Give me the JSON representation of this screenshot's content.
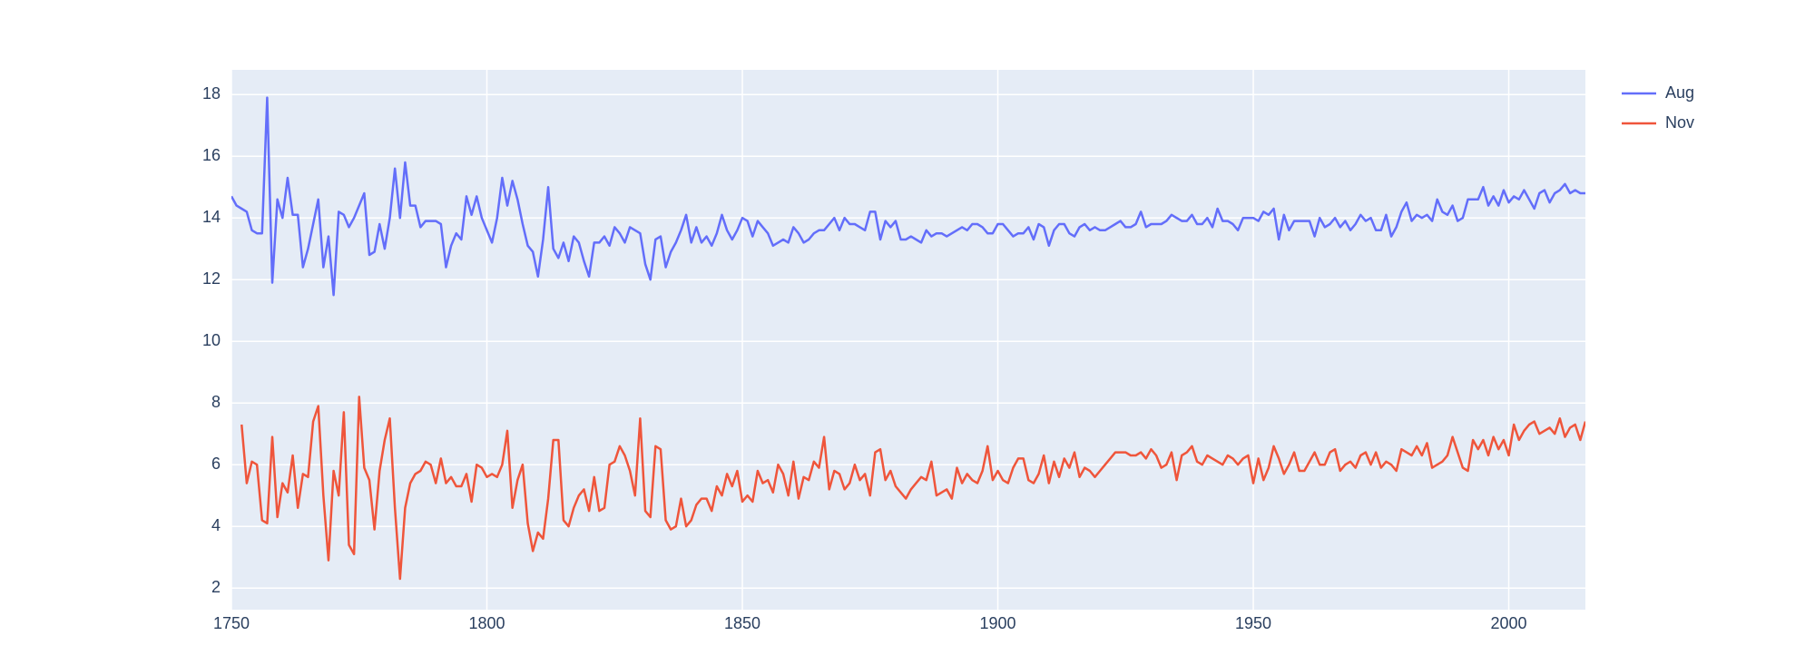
{
  "chart_data": {
    "type": "line",
    "x": [
      1750,
      1751,
      1752,
      1753,
      1754,
      1755,
      1756,
      1757,
      1758,
      1759,
      1760,
      1761,
      1762,
      1763,
      1764,
      1765,
      1766,
      1767,
      1768,
      1769,
      1770,
      1771,
      1772,
      1773,
      1774,
      1775,
      1776,
      1777,
      1778,
      1779,
      1780,
      1781,
      1782,
      1783,
      1784,
      1785,
      1786,
      1787,
      1788,
      1789,
      1790,
      1791,
      1792,
      1793,
      1794,
      1795,
      1796,
      1797,
      1798,
      1799,
      1800,
      1801,
      1802,
      1803,
      1804,
      1805,
      1806,
      1807,
      1808,
      1809,
      1810,
      1811,
      1812,
      1813,
      1814,
      1815,
      1816,
      1817,
      1818,
      1819,
      1820,
      1821,
      1822,
      1823,
      1824,
      1825,
      1826,
      1827,
      1828,
      1829,
      1830,
      1831,
      1832,
      1833,
      1834,
      1835,
      1836,
      1837,
      1838,
      1839,
      1840,
      1841,
      1842,
      1843,
      1844,
      1845,
      1846,
      1847,
      1848,
      1849,
      1850,
      1851,
      1852,
      1853,
      1854,
      1855,
      1856,
      1857,
      1858,
      1859,
      1860,
      1861,
      1862,
      1863,
      1864,
      1865,
      1866,
      1867,
      1868,
      1869,
      1870,
      1871,
      1872,
      1873,
      1874,
      1875,
      1876,
      1877,
      1878,
      1879,
      1880,
      1881,
      1882,
      1883,
      1884,
      1885,
      1886,
      1887,
      1888,
      1889,
      1890,
      1891,
      1892,
      1893,
      1894,
      1895,
      1896,
      1897,
      1898,
      1899,
      1900,
      1901,
      1902,
      1903,
      1904,
      1905,
      1906,
      1907,
      1908,
      1909,
      1910,
      1911,
      1912,
      1913,
      1914,
      1915,
      1916,
      1917,
      1918,
      1919,
      1920,
      1921,
      1922,
      1923,
      1924,
      1925,
      1926,
      1927,
      1928,
      1929,
      1930,
      1931,
      1932,
      1933,
      1934,
      1935,
      1936,
      1937,
      1938,
      1939,
      1940,
      1941,
      1942,
      1943,
      1944,
      1945,
      1946,
      1947,
      1948,
      1949,
      1950,
      1951,
      1952,
      1953,
      1954,
      1955,
      1956,
      1957,
      1958,
      1959,
      1960,
      1961,
      1962,
      1963,
      1964,
      1965,
      1966,
      1967,
      1968,
      1969,
      1970,
      1971,
      1972,
      1973,
      1974,
      1975,
      1976,
      1977,
      1978,
      1979,
      1980,
      1981,
      1982,
      1983,
      1984,
      1985,
      1986,
      1987,
      1988,
      1989,
      1990,
      1991,
      1992,
      1993,
      1994,
      1995,
      1996,
      1997,
      1998,
      1999,
      2000,
      2001,
      2002,
      2003,
      2004,
      2005,
      2006,
      2007,
      2008,
      2009,
      2010,
      2011,
      2012,
      2013,
      2014,
      2015
    ],
    "series": [
      {
        "name": "Aug",
        "color": "#636efa",
        "values": [
          14.7,
          14.4,
          14.3,
          14.2,
          13.6,
          13.5,
          13.5,
          17.9,
          11.9,
          14.6,
          14.0,
          15.3,
          14.1,
          14.1,
          12.4,
          13.0,
          13.8,
          14.6,
          12.4,
          13.4,
          11.5,
          14.2,
          14.1,
          13.7,
          14.0,
          14.4,
          14.8,
          12.8,
          12.9,
          13.8,
          13.0,
          14.0,
          15.6,
          14.0,
          15.8,
          14.4,
          14.4,
          13.7,
          13.9,
          13.9,
          13.9,
          13.8,
          12.4,
          13.1,
          13.5,
          13.3,
          14.7,
          14.1,
          14.7,
          14.0,
          13.6,
          13.2,
          14.0,
          15.3,
          14.4,
          15.2,
          14.6,
          13.8,
          13.1,
          12.9,
          12.1,
          13.3,
          15.0,
          13.0,
          12.7,
          13.2,
          12.6,
          13.4,
          13.2,
          12.6,
          12.1,
          13.2,
          13.2,
          13.4,
          13.1,
          13.7,
          13.5,
          13.2,
          13.7,
          13.6,
          13.5,
          12.5,
          12.0,
          13.3,
          13.4,
          12.4,
          12.9,
          13.2,
          13.6,
          14.1,
          13.2,
          13.7,
          13.2,
          13.4,
          13.1,
          13.5,
          14.1,
          13.6,
          13.3,
          13.6,
          14.0,
          13.9,
          13.4,
          13.9,
          13.7,
          13.5,
          13.1,
          13.2,
          13.3,
          13.2,
          13.7,
          13.5,
          13.2,
          13.3,
          13.5,
          13.6,
          13.6,
          13.8,
          14.0,
          13.6,
          14.0,
          13.8,
          13.8,
          13.7,
          13.6,
          14.2,
          14.2,
          13.3,
          13.9,
          13.7,
          13.9,
          13.3,
          13.3,
          13.4,
          13.3,
          13.2,
          13.6,
          13.4,
          13.5,
          13.5,
          13.4,
          13.5,
          13.6,
          13.7,
          13.6,
          13.8,
          13.8,
          13.7,
          13.5,
          13.5,
          13.8,
          13.8,
          13.6,
          13.4,
          13.5,
          13.5,
          13.7,
          13.3,
          13.8,
          13.7,
          13.1,
          13.6,
          13.8,
          13.8,
          13.5,
          13.4,
          13.7,
          13.8,
          13.6,
          13.7,
          13.6,
          13.6,
          13.7,
          13.8,
          13.9,
          13.7,
          13.7,
          13.8,
          14.2,
          13.7,
          13.8,
          13.8,
          13.8,
          13.9,
          14.1,
          14.0,
          13.9,
          13.9,
          14.1,
          13.8,
          13.8,
          14.0,
          13.7,
          14.3,
          13.9,
          13.9,
          13.8,
          13.6,
          14.0,
          14.0,
          14.0,
          13.9,
          14.2,
          14.1,
          14.3,
          13.3,
          14.1,
          13.6,
          13.9,
          13.9,
          13.9,
          13.9,
          13.4,
          14.0,
          13.7,
          13.8,
          14.0,
          13.7,
          13.9,
          13.6,
          13.8,
          14.1,
          13.9,
          14.0,
          13.6,
          13.6,
          14.1,
          13.4,
          13.7,
          14.2,
          14.5,
          13.9,
          14.1,
          14.0,
          14.1,
          13.9,
          14.6,
          14.2,
          14.1,
          14.4,
          13.9,
          14.0,
          14.6,
          14.6,
          14.6,
          15.0,
          14.4,
          14.7,
          14.4,
          14.9,
          14.5,
          14.7,
          14.6,
          14.9,
          14.6,
          14.3,
          14.8,
          14.9,
          14.5,
          14.8,
          14.9,
          15.1,
          14.8,
          14.9,
          14.8,
          14.8
        ]
      },
      {
        "name": "Nov",
        "color": "#ef553b",
        "values": [
          null,
          null,
          7.3,
          5.4,
          6.1,
          6.0,
          4.2,
          4.1,
          6.9,
          4.3,
          5.4,
          5.1,
          6.3,
          4.6,
          5.7,
          5.6,
          7.4,
          7.9,
          5.0,
          2.9,
          5.8,
          5.0,
          7.7,
          3.4,
          3.1,
          8.2,
          5.9,
          5.5,
          3.9,
          5.8,
          6.8,
          7.5,
          4.6,
          2.3,
          4.6,
          5.4,
          5.7,
          5.8,
          6.1,
          6.0,
          5.4,
          6.2,
          5.4,
          5.6,
          5.3,
          5.3,
          5.7,
          4.8,
          6.0,
          5.9,
          5.6,
          5.7,
          5.6,
          6.0,
          7.1,
          4.6,
          5.5,
          6.0,
          4.1,
          3.2,
          3.8,
          3.6,
          4.9,
          6.8,
          6.8,
          4.2,
          4.0,
          4.6,
          5.0,
          5.2,
          4.5,
          5.6,
          4.5,
          4.6,
          6.0,
          6.1,
          6.6,
          6.3,
          5.8,
          5.0,
          7.5,
          4.5,
          4.3,
          6.6,
          6.5,
          4.2,
          3.9,
          4.0,
          4.9,
          4.0,
          4.2,
          4.7,
          4.9,
          4.9,
          4.5,
          5.3,
          5.0,
          5.7,
          5.3,
          5.8,
          4.8,
          5.0,
          4.8,
          5.8,
          5.4,
          5.5,
          5.1,
          6.0,
          5.7,
          5.0,
          6.1,
          4.9,
          5.6,
          5.5,
          6.1,
          5.9,
          6.9,
          5.2,
          5.8,
          5.7,
          5.2,
          5.4,
          6.0,
          5.5,
          5.7,
          5.0,
          6.4,
          6.5,
          5.5,
          5.8,
          5.3,
          5.1,
          4.9,
          5.2,
          5.4,
          5.6,
          5.5,
          6.1,
          5.0,
          5.1,
          5.2,
          4.9,
          5.9,
          5.4,
          5.7,
          5.5,
          5.4,
          5.8,
          6.6,
          5.5,
          5.8,
          5.5,
          5.4,
          5.9,
          6.2,
          6.2,
          5.5,
          5.4,
          5.7,
          6.3,
          5.4,
          6.1,
          5.6,
          6.2,
          5.9,
          6.4,
          5.6,
          5.9,
          5.8,
          5.6,
          5.8,
          6.0,
          6.2,
          6.4,
          6.4,
          6.4,
          6.3,
          6.3,
          6.4,
          6.2,
          6.5,
          6.3,
          5.9,
          6.0,
          6.4,
          5.5,
          6.3,
          6.4,
          6.6,
          6.1,
          6.0,
          6.3,
          6.2,
          6.1,
          6.0,
          6.3,
          6.2,
          6.0,
          6.2,
          6.3,
          5.4,
          6.2,
          5.5,
          5.9,
          6.6,
          6.2,
          5.7,
          6.0,
          6.4,
          5.8,
          5.8,
          6.1,
          6.4,
          6.0,
          6.0,
          6.4,
          6.5,
          5.8,
          6.0,
          6.1,
          5.9,
          6.3,
          6.4,
          6.0,
          6.4,
          5.9,
          6.1,
          6.0,
          5.8,
          6.5,
          6.4,
          6.3,
          6.6,
          6.3,
          6.7,
          5.9,
          6.0,
          6.1,
          6.3,
          6.9,
          6.4,
          5.9,
          5.8,
          6.8,
          6.5,
          6.8,
          6.3,
          6.9,
          6.5,
          6.8,
          6.3,
          7.3,
          6.8,
          7.1,
          7.3,
          7.4,
          7.0,
          7.1,
          7.2,
          7.0,
          7.5,
          6.9,
          7.2,
          7.3,
          6.8,
          7.4
        ]
      }
    ],
    "xlim": [
      1750,
      2015
    ],
    "xticks": [
      1750,
      1800,
      1850,
      1900,
      1950,
      2000
    ],
    "ylim": [
      1.3,
      18.8
    ],
    "yticks": [
      2,
      4,
      6,
      8,
      10,
      12,
      14,
      16,
      18
    ],
    "grid": true,
    "legend": "right"
  }
}
